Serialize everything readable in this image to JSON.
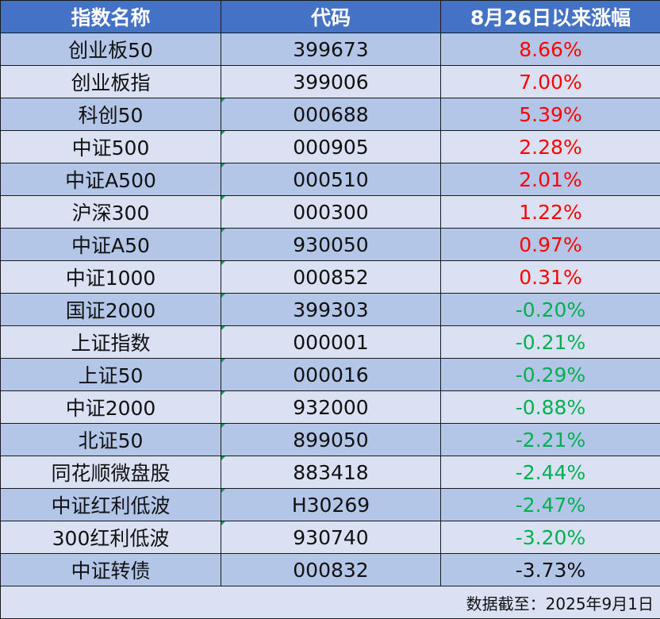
{
  "header": {
    "name": "指数名称",
    "code": "代码",
    "change": "8月26日以来涨幅"
  },
  "rows": [
    {
      "name": "创业板50",
      "code": "399673",
      "change": "8.66%",
      "dir": "up"
    },
    {
      "name": "创业板指",
      "code": "399006",
      "change": "7.00%",
      "dir": "up"
    },
    {
      "name": "科创50",
      "code": "000688",
      "change": "5.39%",
      "dir": "up"
    },
    {
      "name": "中证500",
      "code": "000905",
      "change": "2.28%",
      "dir": "up"
    },
    {
      "name": "中证A500",
      "code": "000510",
      "change": "2.01%",
      "dir": "up"
    },
    {
      "name": "沪深300",
      "code": "000300",
      "change": "1.22%",
      "dir": "up"
    },
    {
      "name": "中证A50",
      "code": "930050",
      "change": "0.97%",
      "dir": "up"
    },
    {
      "name": "中证1000",
      "code": "000852",
      "change": "0.31%",
      "dir": "up"
    },
    {
      "name": "国证2000",
      "code": "399303",
      "change": "-0.20%",
      "dir": "down"
    },
    {
      "name": "上证指数",
      "code": "000001",
      "change": "-0.21%",
      "dir": "down"
    },
    {
      "name": "上证50",
      "code": "000016",
      "change": "-0.29%",
      "dir": "down"
    },
    {
      "name": "中证2000",
      "code": "932000",
      "change": "-0.88%",
      "dir": "down"
    },
    {
      "name": "北证50",
      "code": "899050",
      "change": "-2.21%",
      "dir": "down"
    },
    {
      "name": "同花顺微盘股",
      "code": "883418",
      "change": "-2.44%",
      "dir": "down"
    },
    {
      "name": "中证红利低波",
      "code": "H30269",
      "change": "-2.47%",
      "dir": "down"
    },
    {
      "name": "300红利低波",
      "code": "930740",
      "change": "-3.20%",
      "dir": "down"
    },
    {
      "name": "中证转债",
      "code": "000832",
      "change": "-3.73%",
      "dir": "neutral"
    }
  ],
  "footer": {
    "note": "数据截至：2025年9月1日"
  },
  "colors": {
    "header_bg": "#4472c4",
    "row_odd": "#b4c6e7",
    "row_even": "#d9e1f2",
    "up": "#ff0000",
    "down": "#00b050"
  }
}
